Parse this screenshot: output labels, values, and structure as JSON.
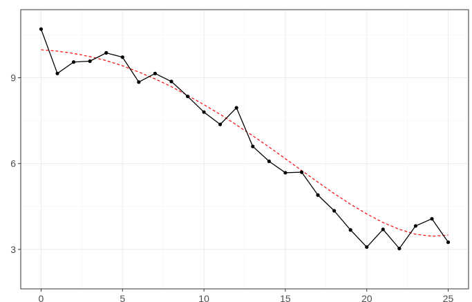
{
  "chart_data": {
    "type": "line",
    "x": [
      0,
      1,
      2,
      3,
      4,
      5,
      6,
      7,
      8,
      9,
      10,
      11,
      12,
      13,
      14,
      15,
      16,
      17,
      18,
      19,
      20,
      21,
      22,
      23,
      24,
      25
    ],
    "series": [
      {
        "values": [
          10.7,
          9.15,
          9.55,
          9.58,
          9.87,
          9.72,
          8.85,
          9.15,
          8.87,
          8.35,
          7.8,
          7.37,
          7.95,
          6.6,
          6.08,
          5.68,
          5.7,
          4.9,
          4.35,
          3.68,
          3.08,
          3.7,
          3.03,
          3.82,
          4.07,
          3.25
        ],
        "style": "solid-line-with-points",
        "color": "#000000"
      },
      {
        "values": [
          9.98,
          9.93,
          9.85,
          9.74,
          9.6,
          9.42,
          9.2,
          8.96,
          8.69,
          8.38,
          8.06,
          7.72,
          7.35,
          6.97,
          6.58,
          6.17,
          5.76,
          5.35,
          4.95,
          4.58,
          4.24,
          3.94,
          3.7,
          3.53,
          3.46,
          3.5
        ],
        "style": "dashed-line",
        "color": "#ff0000"
      }
    ],
    "xlim": [
      -1.25,
      26.25
    ],
    "ylim": [
      1.62,
      11.38
    ],
    "x_ticks": [
      0,
      5,
      10,
      15,
      20,
      25
    ],
    "y_ticks": [
      3,
      6,
      9
    ],
    "x_tick_labels": [
      "0",
      "5",
      "10",
      "15",
      "20",
      "25"
    ],
    "y_tick_labels": [
      "3",
      "6",
      "9"
    ],
    "grid": true,
    "legend": "none",
    "title": "",
    "xlabel": "",
    "ylabel": ""
  }
}
